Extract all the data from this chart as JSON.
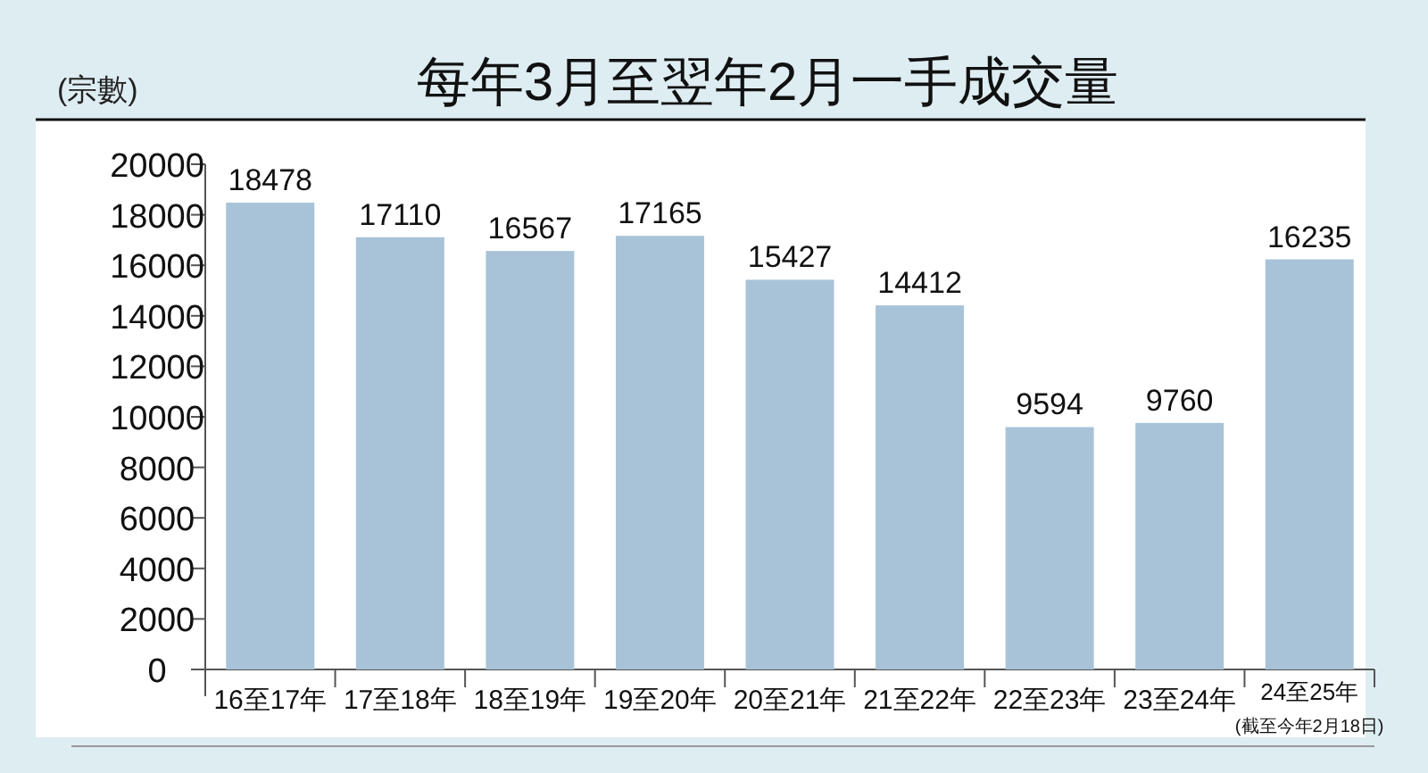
{
  "chart_data": {
    "type": "bar",
    "title": "每年3月至翌年2月一手成交量",
    "ylabel": "(宗數)",
    "categories": [
      "16至17年",
      "17至18年",
      "18至19年",
      "19至20年",
      "20至21年",
      "21至22年",
      "22至23年",
      "23至24年",
      "24至25年\n(截至今年2月18日)"
    ],
    "values": [
      18478,
      17110,
      16567,
      17165,
      15427,
      14412,
      9594,
      9760,
      16235
    ],
    "color": "#a8c3d8",
    "ylim": [
      0,
      20000
    ],
    "yticks": [
      0,
      2000,
      4000,
      6000,
      8000,
      10000,
      12000,
      14000,
      16000,
      18000,
      20000
    ],
    "data_labels": true
  }
}
